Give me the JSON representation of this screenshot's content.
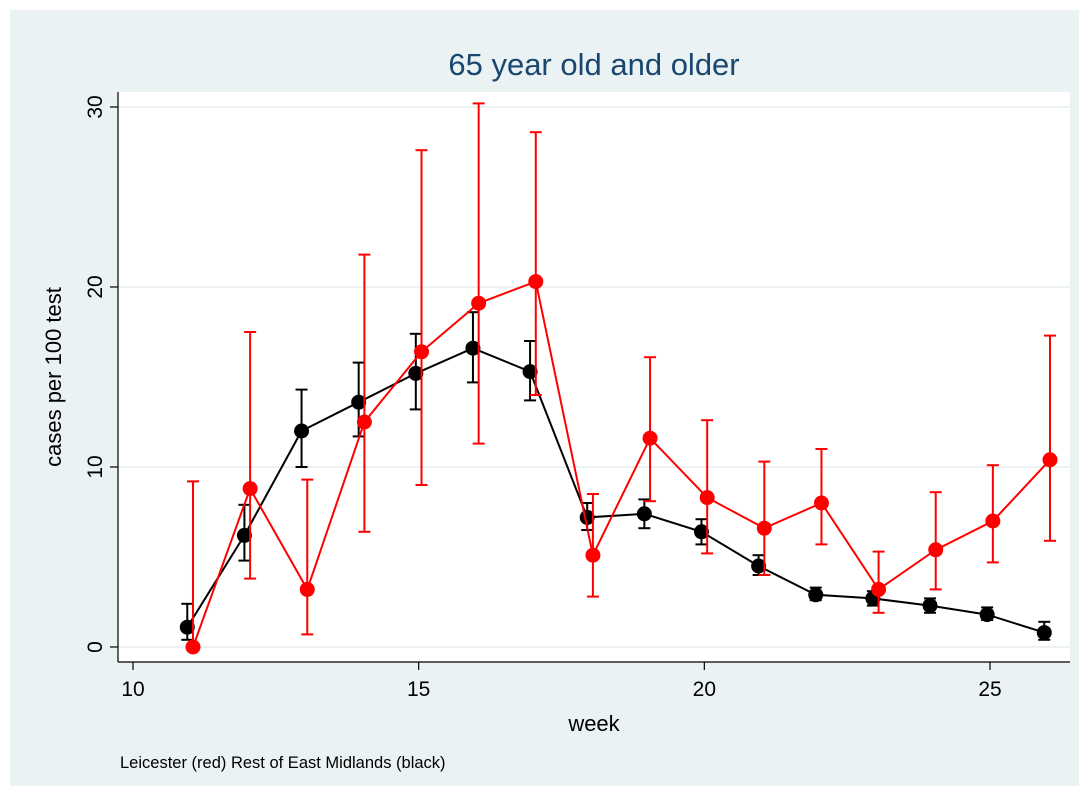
{
  "chart_data": {
    "type": "line",
    "title": "65 year old and older",
    "xlabel": "week",
    "ylabel": "cases per 100 test",
    "note": "Leicester (red) Rest of East Midlands (black)",
    "xlim": [
      10,
      26.3
    ],
    "ylim": [
      -0.8,
      30.5
    ],
    "xticks": [
      10,
      15,
      20,
      25
    ],
    "yticks": [
      0,
      10,
      20,
      30
    ],
    "grid": true,
    "legend": "none",
    "series": [
      {
        "color": "#000000",
        "x": [
          10.95,
          11.95,
          12.95,
          13.95,
          14.95,
          15.95,
          16.95,
          17.95,
          18.95,
          19.95,
          20.95,
          21.95,
          22.95,
          23.95,
          24.95,
          25.95
        ],
        "values": [
          1.1,
          6.2,
          12.0,
          13.6,
          15.2,
          16.6,
          15.3,
          7.2,
          7.4,
          6.4,
          4.5,
          2.9,
          2.7,
          2.3,
          1.8,
          0.8
        ],
        "lower": [
          0.4,
          4.8,
          10.0,
          11.7,
          13.2,
          14.7,
          13.7,
          6.5,
          6.6,
          5.7,
          4.0,
          2.6,
          2.3,
          1.9,
          1.5,
          0.4
        ],
        "upper": [
          2.4,
          7.9,
          14.3,
          15.8,
          17.4,
          18.6,
          17.0,
          8.0,
          8.2,
          7.1,
          5.1,
          3.3,
          3.1,
          2.7,
          2.2,
          1.4
        ]
      },
      {
        "color": "#ff0000",
        "x": [
          11.05,
          12.05,
          13.05,
          14.05,
          15.05,
          16.05,
          17.05,
          18.05,
          19.05,
          20.05,
          21.05,
          22.05,
          23.05,
          24.05,
          25.05,
          26.05
        ],
        "values": [
          0.0,
          8.8,
          3.2,
          12.5,
          16.4,
          19.1,
          20.3,
          5.1,
          11.6,
          8.3,
          6.6,
          8.0,
          3.2,
          5.4,
          7.0,
          10.4
        ],
        "lower": [
          0.0,
          3.8,
          0.7,
          6.4,
          9.0,
          11.3,
          14.0,
          2.8,
          8.1,
          5.2,
          4.0,
          5.7,
          1.9,
          3.2,
          4.7,
          5.9
        ],
        "upper": [
          9.2,
          17.5,
          9.3,
          21.8,
          27.6,
          30.2,
          28.6,
          8.5,
          16.1,
          12.6,
          10.3,
          11.0,
          5.3,
          8.6,
          10.1,
          17.3
        ]
      }
    ]
  }
}
